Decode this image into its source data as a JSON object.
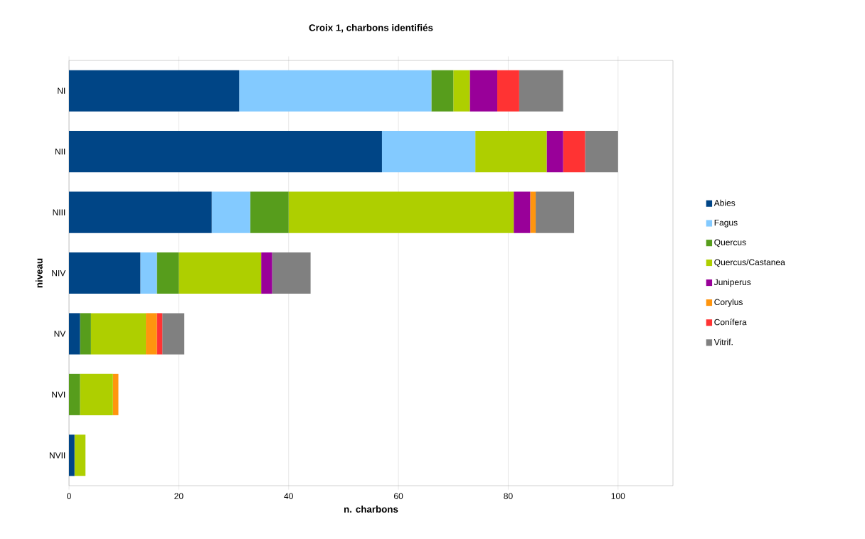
{
  "chart_data": {
    "type": "bar",
    "orientation": "horizontal",
    "stacked": true,
    "title": "Croix 1, charbons identifiés",
    "xlabel": "n. charbons",
    "ylabel": "niveau",
    "categories": [
      "NI",
      "NII",
      "NIII",
      "NIV",
      "NV",
      "NVI",
      "NVII"
    ],
    "xlim": [
      0,
      110
    ],
    "xticks": [
      0,
      20,
      40,
      60,
      80,
      100
    ],
    "grid": "x",
    "legend": "right",
    "series": [
      {
        "name": "Abies",
        "color": "#004586",
        "values": [
          31,
          57,
          26,
          13,
          2,
          0,
          1
        ]
      },
      {
        "name": "Fagus",
        "color": "#83caff",
        "values": [
          35,
          17,
          7,
          3,
          0,
          0,
          0
        ]
      },
      {
        "name": "Quercus",
        "color": "#579d1c",
        "values": [
          4,
          0,
          7,
          4,
          2,
          2,
          0
        ]
      },
      {
        "name": "Quercus/Castanea",
        "color": "#aecf00",
        "values": [
          3,
          13,
          41,
          15,
          10,
          6,
          2
        ]
      },
      {
        "name": "Juniperus",
        "color": "#990099",
        "values": [
          5,
          3,
          3,
          2,
          0,
          0,
          0
        ]
      },
      {
        "name": "Corylus",
        "color": "#ff950e",
        "values": [
          0,
          0,
          1,
          0,
          2,
          1,
          0
        ]
      },
      {
        "name": "Conífera",
        "color": "#ff3333",
        "values": [
          4,
          4,
          0,
          0,
          1,
          0,
          0
        ]
      },
      {
        "name": "Vitrif.",
        "color": "#808080",
        "values": [
          8,
          6,
          7,
          7,
          4,
          0,
          0
        ]
      }
    ]
  }
}
